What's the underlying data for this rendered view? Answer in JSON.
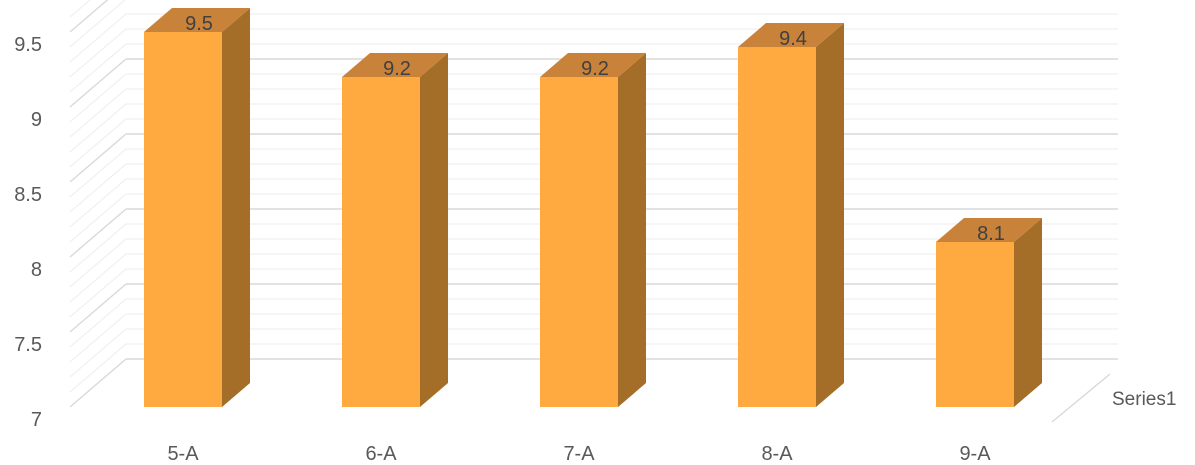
{
  "chart_data": {
    "type": "bar",
    "style": "3d-column",
    "categories": [
      "5-A",
      "6-A",
      "7-A",
      "8-A",
      "9-A"
    ],
    "series": [
      {
        "name": "Series1",
        "values": [
          9.5,
          9.2,
          9.2,
          9.4,
          8.1
        ]
      }
    ],
    "data_labels": [
      "9.5",
      "9.2",
      "9.2",
      "9.4",
      "8.1"
    ],
    "y_ticks": [
      "7",
      "7.5",
      "8",
      "8.5",
      "9",
      "9.5"
    ],
    "ylim": [
      7,
      9.6
    ],
    "grid": true,
    "legend": "none",
    "colors": {
      "bar_front": "#FFAA40",
      "bar_top": "#C9823A",
      "bar_side": "#A46D28",
      "grid_major": "#D9D9D9",
      "grid_minor": "#EDEDED",
      "text": "#595959"
    }
  }
}
